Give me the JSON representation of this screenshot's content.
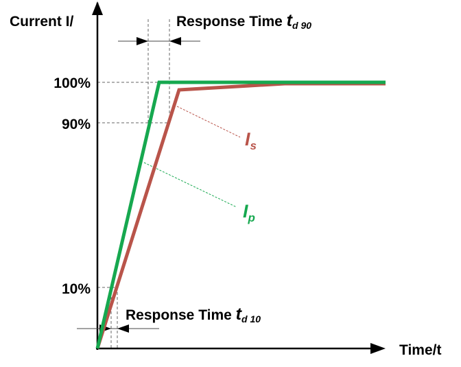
{
  "y_axis_label": "Current I/",
  "x_axis_label": "Time/t",
  "y_ticks": [
    "100%",
    "90%",
    "10%"
  ],
  "response_90": {
    "text": "Response Time ",
    "t": "t",
    "sub": "d 90"
  },
  "response_10": {
    "text": "Response Time ",
    "t": "t",
    "sub": "d 10"
  },
  "series": [
    {
      "name_main": "I",
      "name_sub": "p",
      "color": "#16a84f"
    },
    {
      "name_main": "I",
      "name_sub": "s",
      "color": "#b9544a"
    }
  ]
}
